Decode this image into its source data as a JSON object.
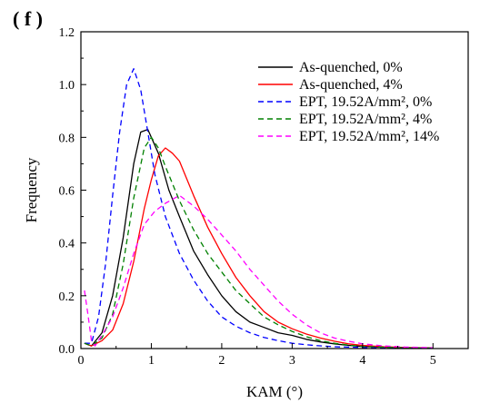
{
  "panel_label": "( f )",
  "chart_data": {
    "type": "line",
    "xlabel": "KAM (°)",
    "ylabel": "Frequency",
    "xlim": [
      0,
      5.5
    ],
    "ylim": [
      0,
      1.2
    ],
    "xticks": [
      0,
      1,
      2,
      3,
      4,
      5
    ],
    "yticks": [
      0.0,
      0.2,
      0.4,
      0.6,
      0.8,
      1.0,
      1.2
    ],
    "xtick_labels": [
      "0",
      "1",
      "2",
      "3",
      "4",
      "5"
    ],
    "ytick_labels": [
      "0.0",
      "0.2",
      "0.4",
      "0.6",
      "0.8",
      "1.0",
      "1.2"
    ],
    "grid": false,
    "legend_position": "top-right",
    "series": [
      {
        "name": "As-quenched, 0%",
        "color": "#000000",
        "dash": "solid",
        "x": [
          0.05,
          0.15,
          0.3,
          0.45,
          0.6,
          0.75,
          0.85,
          0.95,
          1.1,
          1.25,
          1.4,
          1.6,
          1.8,
          2.0,
          2.2,
          2.4,
          2.6,
          2.8,
          3.0,
          3.2,
          3.4,
          3.6,
          3.8,
          4.0,
          4.3,
          4.6,
          5.0
        ],
        "y": [
          0.02,
          0.01,
          0.06,
          0.2,
          0.42,
          0.7,
          0.82,
          0.83,
          0.74,
          0.6,
          0.5,
          0.37,
          0.28,
          0.2,
          0.14,
          0.1,
          0.08,
          0.06,
          0.05,
          0.035,
          0.025,
          0.018,
          0.012,
          0.008,
          0.005,
          0.003,
          0.002
        ]
      },
      {
        "name": "As-quenched, 4%",
        "color": "#ff0000",
        "dash": "solid",
        "x": [
          0.05,
          0.15,
          0.3,
          0.45,
          0.6,
          0.75,
          0.9,
          1.0,
          1.1,
          1.2,
          1.3,
          1.4,
          1.6,
          1.8,
          2.0,
          2.2,
          2.4,
          2.6,
          2.8,
          3.0,
          3.2,
          3.4,
          3.6,
          3.8,
          4.0,
          4.3,
          4.6,
          5.0
        ],
        "y": [
          0.02,
          0.01,
          0.03,
          0.07,
          0.17,
          0.33,
          0.53,
          0.64,
          0.73,
          0.76,
          0.74,
          0.71,
          0.58,
          0.46,
          0.36,
          0.27,
          0.2,
          0.14,
          0.1,
          0.075,
          0.055,
          0.04,
          0.028,
          0.018,
          0.012,
          0.007,
          0.004,
          0.002
        ]
      },
      {
        "name": "EPT, 19.52A/mm², 0%",
        "color": "#0000ff",
        "dash": "6,4",
        "x": [
          0.05,
          0.15,
          0.25,
          0.35,
          0.45,
          0.55,
          0.65,
          0.75,
          0.85,
          0.95,
          1.05,
          1.2,
          1.4,
          1.6,
          1.8,
          2.0,
          2.2,
          2.4,
          2.6,
          2.8,
          3.0,
          3.3,
          3.6,
          4.0,
          4.5,
          5.0
        ],
        "y": [
          0.02,
          0.02,
          0.12,
          0.32,
          0.58,
          0.82,
          1.0,
          1.06,
          0.98,
          0.82,
          0.66,
          0.5,
          0.36,
          0.26,
          0.18,
          0.12,
          0.085,
          0.06,
          0.042,
          0.03,
          0.02,
          0.012,
          0.007,
          0.004,
          0.002,
          0.001
        ]
      },
      {
        "name": "EPT, 19.52A/mm², 4%",
        "color": "#008000",
        "dash": "6,4",
        "x": [
          0.05,
          0.15,
          0.3,
          0.45,
          0.6,
          0.75,
          0.9,
          1.0,
          1.1,
          1.2,
          1.4,
          1.6,
          1.8,
          2.0,
          2.2,
          2.4,
          2.6,
          2.8,
          3.0,
          3.2,
          3.4,
          3.6,
          3.8,
          4.0,
          4.3,
          4.6,
          5.0
        ],
        "y": [
          0.02,
          0.01,
          0.04,
          0.13,
          0.32,
          0.57,
          0.76,
          0.8,
          0.76,
          0.69,
          0.56,
          0.45,
          0.36,
          0.29,
          0.22,
          0.17,
          0.12,
          0.09,
          0.065,
          0.045,
          0.03,
          0.02,
          0.013,
          0.008,
          0.005,
          0.003,
          0.002
        ]
      },
      {
        "name": "EPT, 19.52A/mm², 14%",
        "color": "#ff00ff",
        "dash": "6,4",
        "x": [
          0.05,
          0.1,
          0.15,
          0.2,
          0.3,
          0.45,
          0.6,
          0.75,
          0.9,
          1.05,
          1.2,
          1.4,
          1.6,
          1.8,
          2.0,
          2.2,
          2.4,
          2.6,
          2.8,
          3.0,
          3.2,
          3.4,
          3.6,
          3.8,
          4.0,
          4.3,
          4.6,
          5.0
        ],
        "y": [
          0.22,
          0.13,
          0.03,
          0.01,
          0.05,
          0.12,
          0.23,
          0.36,
          0.47,
          0.52,
          0.55,
          0.58,
          0.54,
          0.49,
          0.43,
          0.37,
          0.3,
          0.24,
          0.18,
          0.13,
          0.09,
          0.06,
          0.04,
          0.028,
          0.018,
          0.01,
          0.006,
          0.003
        ]
      }
    ]
  }
}
